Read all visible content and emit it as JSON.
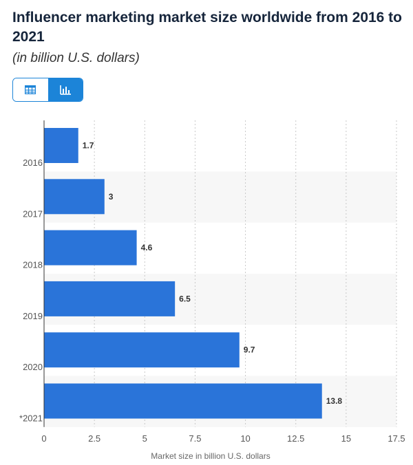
{
  "header": {
    "title": "Influencer marketing market size worldwide from 2016 to 2021",
    "subtitle": "(in billion U.S. dollars)"
  },
  "toggle": {
    "table_icon": "table-icon",
    "chart_icon": "bar-chart-icon",
    "active": "chart"
  },
  "colors": {
    "bar": "#2a74d9",
    "accent": "#1c84d8",
    "title": "#16253b"
  },
  "chart_data": {
    "type": "bar",
    "orientation": "horizontal",
    "categories": [
      "2016",
      "2017",
      "2018",
      "2019",
      "2020",
      "*2021"
    ],
    "values": [
      1.7,
      3,
      4.6,
      6.5,
      9.7,
      13.8
    ],
    "value_labels": [
      "1.7",
      "3",
      "4.6",
      "6.5",
      "9.7",
      "13.8"
    ],
    "xlabel": "Market size in billion U.S. dollars",
    "ylabel": "",
    "xlim": [
      0,
      17.5
    ],
    "xticks": [
      0,
      2.5,
      5,
      7.5,
      10,
      12.5,
      15,
      17.5
    ],
    "xtick_labels": [
      "0",
      "2.5",
      "5",
      "7.5",
      "10",
      "12.5",
      "15",
      "17.5"
    ],
    "grid": true,
    "legend": false
  }
}
